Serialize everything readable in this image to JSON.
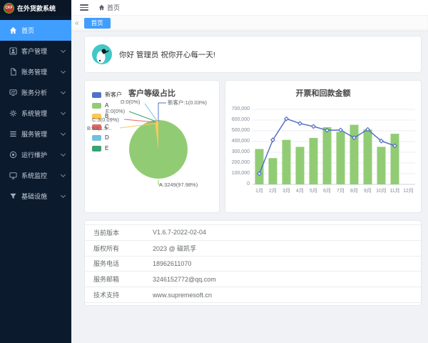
{
  "app": {
    "logo_text": "CKF",
    "title": "在外货款系统"
  },
  "sidebar": {
    "items": [
      {
        "key": "home",
        "label": "首页",
        "icon": "home-icon",
        "active": true,
        "has_children": false
      },
      {
        "key": "customers",
        "label": "客户管理",
        "icon": "customer-icon",
        "active": false,
        "has_children": true
      },
      {
        "key": "billing",
        "label": "账务管理",
        "icon": "billing-icon",
        "active": false,
        "has_children": true
      },
      {
        "key": "analysis",
        "label": "账务分析",
        "icon": "analysis-icon",
        "active": false,
        "has_children": true
      },
      {
        "key": "system",
        "label": "系统管理",
        "icon": "settings-icon",
        "active": false,
        "has_children": true
      },
      {
        "key": "service",
        "label": "服务管理",
        "icon": "service-icon",
        "active": false,
        "has_children": true
      },
      {
        "key": "maintenance",
        "label": "运行维护",
        "icon": "maintenance-icon",
        "active": false,
        "has_children": true
      },
      {
        "key": "monitoring",
        "label": "系统监控",
        "icon": "monitor-icon",
        "active": false,
        "has_children": true
      },
      {
        "key": "infrastructure",
        "label": "基础设施",
        "icon": "infrastructure-icon",
        "active": false,
        "has_children": true
      }
    ]
  },
  "topbar": {
    "breadcrumb": "首页"
  },
  "tabs": {
    "items": [
      {
        "label": "首页",
        "active": true
      }
    ]
  },
  "icons": {
    "collapse_tabs": "«"
  },
  "greeting": {
    "text": "你好 管理员 祝你开心每一天!"
  },
  "chart_data": [
    {
      "type": "pie",
      "title": "客户等级占比",
      "legend_position": "left",
      "segments": [
        {
          "label": "新客户",
          "value": 1,
          "percent": "0.03%",
          "color": "#5470C6"
        },
        {
          "label": "A",
          "value": 3249,
          "percent": "97.98%",
          "color": "#91CC75"
        },
        {
          "label": "B",
          "value": 63,
          "percent": "1.9%",
          "color": "#FAC858"
        },
        {
          "label": "C",
          "value": 3,
          "percent": "0.09%",
          "color": "#EE6666"
        },
        {
          "label": "D",
          "value": 0,
          "percent": "0%",
          "color": "#73C0DE"
        },
        {
          "label": "E",
          "value": 0,
          "percent": "0%",
          "color": "#3BA272"
        }
      ],
      "callout_labels": [
        "D:0(0%)",
        "新客户:1(0.03%)",
        "E:0(0%)",
        "C:3(0.09%)",
        "B:63(1.9...",
        "A:3249(97.98%)"
      ]
    },
    {
      "type": "bar",
      "title": "开票和回款金额",
      "categories": [
        "1月",
        "2月",
        "3月",
        "4月",
        "5月",
        "6月",
        "7月",
        "8月",
        "9月",
        "10月",
        "11月",
        "12月"
      ],
      "series": [
        {
          "type": "bar",
          "color": "#91CC75",
          "values": [
            330000,
            245000,
            415000,
            350000,
            433000,
            533000,
            490000,
            556000,
            512000,
            350000,
            472000,
            0
          ]
        },
        {
          "type": "line",
          "color": "#5470C6",
          "values": [
            100000,
            415000,
            612000,
            568000,
            540000,
            505000,
            507000,
            435000,
            512000,
            405000,
            360000,
            null
          ]
        }
      ],
      "ylim": [
        0,
        700000
      ],
      "ytick_labels_top_to_bottom": [
        "700,000",
        "600,000",
        "500,000",
        "400,000",
        "300,000",
        "200,000",
        "100,000",
        "0"
      ],
      "grid": true,
      "legend": "none"
    }
  ],
  "info_table": {
    "rows": [
      {
        "label": "当前版本",
        "value": "V1.6.7-2022-02-04"
      },
      {
        "label": "版权所有",
        "value": "2023 @ 磁凯孚"
      },
      {
        "label": "服务电话",
        "value": "18962611070"
      },
      {
        "label": "服务邮箱",
        "value": "3246152772@qq.com"
      },
      {
        "label": "技术支持",
        "value": "www.supremesoft.cn"
      }
    ]
  },
  "colors": {
    "sidebar_bg": "#0c1a2e",
    "accent_blue": "#409eff",
    "content_bg": "#f0f2f5",
    "card_border": "#e7eaec",
    "avatar_teal": "#41c7c7",
    "palette": [
      "#5470C6",
      "#91CC75",
      "#FAC858",
      "#EE6666",
      "#73C0DE",
      "#3BA272"
    ]
  }
}
